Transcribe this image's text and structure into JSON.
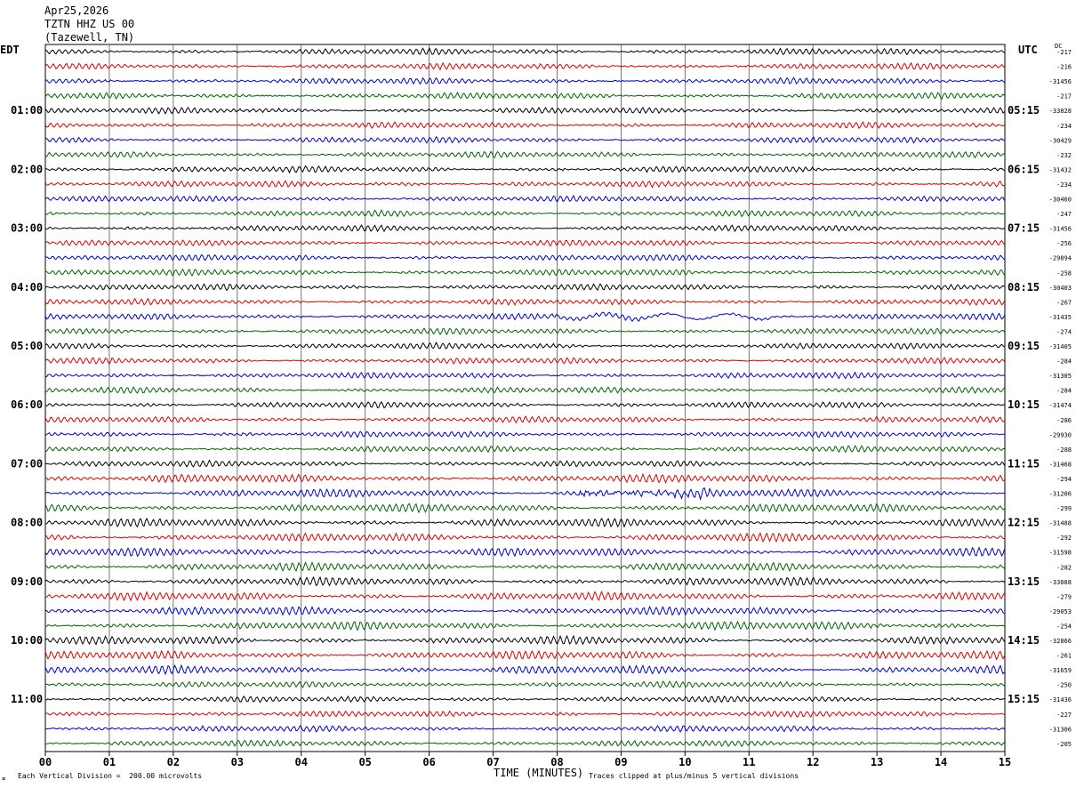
{
  "header": {
    "date": "Apr25,2026",
    "station": "TZTN HHZ US 00",
    "location": "(Tazewell, TN)"
  },
  "left_tz": "EDT",
  "right_tz": "UTC",
  "dc_label": "DC",
  "footer": {
    "scale_note": "Each Vertical Division =  200.00 microvolts",
    "clip_note": "Traces clipped at plus/minus 5 vertical divisions",
    "corner_glyph": "⌧"
  },
  "chart_data": {
    "type": "line",
    "title": "",
    "xlabel": "TIME (MINUTES)",
    "ylabel": "",
    "xlim": [
      0,
      15
    ],
    "x_ticks": [
      "00",
      "01",
      "02",
      "03",
      "04",
      "05",
      "06",
      "07",
      "08",
      "09",
      "10",
      "11",
      "12",
      "13",
      "14",
      "15"
    ],
    "grid": true,
    "trace_colors": [
      "#000000",
      "#dd0000",
      "#0000cc",
      "#006400"
    ],
    "trace_count": 48,
    "minutes_per_trace": 15,
    "left_time_labels": [
      "01:00",
      "02:00",
      "03:00",
      "04:00",
      "05:00",
      "06:00",
      "07:00",
      "08:00",
      "09:00",
      "10:00",
      "11:00"
    ],
    "right_time_labels": [
      "05:15",
      "06:15",
      "07:15",
      "08:15",
      "09:15",
      "10:15",
      "11:15",
      "12:15",
      "13:15",
      "14:15",
      "15:15"
    ],
    "dc_offsets": [
      "-217",
      "-216",
      "-31456",
      "-217",
      "-33828",
      "-234",
      "-30429",
      "-232",
      "-31432",
      "-234",
      "-30460",
      "-247",
      "-31456",
      "-256",
      "-29894",
      "-258",
      "-30403",
      "-267",
      "-31435",
      "-274",
      "-31405",
      "-284",
      "-31305",
      "-284",
      "-31474",
      "-286",
      "-29930",
      "-288",
      "-31468",
      "-294",
      "-31206",
      "-299",
      "-31488",
      "-292",
      "-31598",
      "-282",
      "-33088",
      "-279",
      "-29053",
      "-254",
      "-32866",
      "-261",
      "-31659",
      "-250",
      "-31436",
      "-227",
      "-31306",
      "-205"
    ]
  }
}
